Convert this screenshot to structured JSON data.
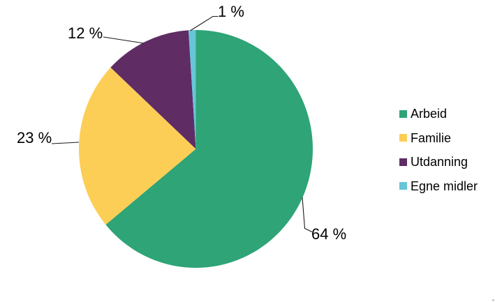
{
  "chart_data": {
    "type": "pie",
    "title": "",
    "categories": [
      "Arbeid",
      "Familie",
      "Utdanning",
      "Egne midler"
    ],
    "values": [
      64,
      23,
      12,
      1
    ],
    "value_unit": "%",
    "data_labels": [
      "64 %",
      "23 %",
      "12 %",
      "1 %"
    ],
    "colors": [
      "#2EA477",
      "#FDCE55",
      "#5F2C64",
      "#67C5D8"
    ],
    "start_angle_deg": 0,
    "direction": "clockwise",
    "legend": {
      "position": "right",
      "items": [
        "Arbeid",
        "Familie",
        "Utdanning",
        "Egne midler"
      ]
    }
  }
}
